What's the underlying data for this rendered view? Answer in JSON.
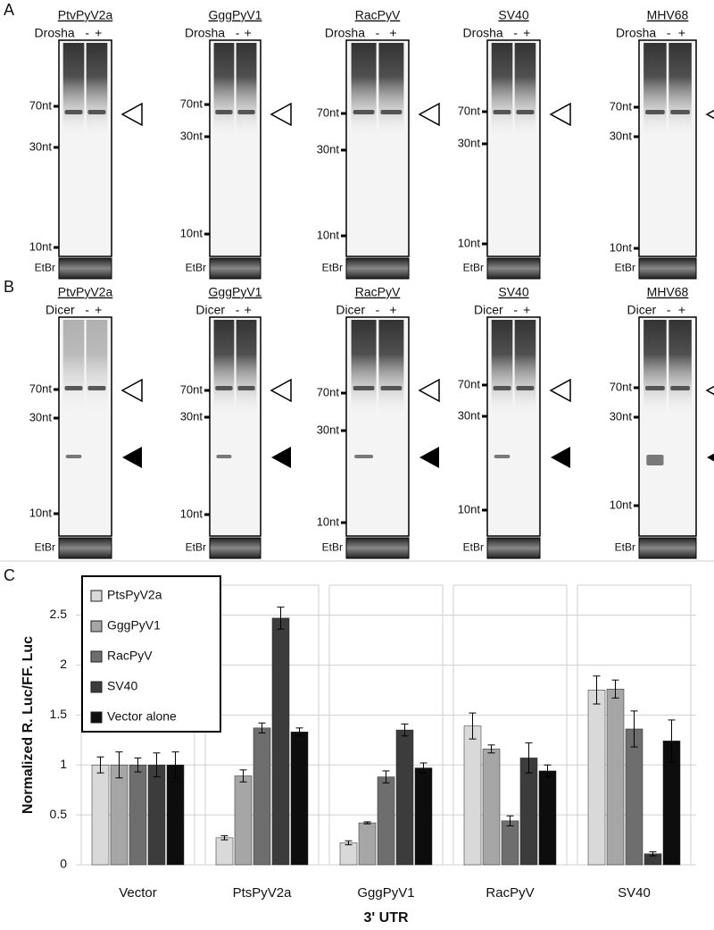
{
  "panels": [
    {
      "label": "A",
      "enzyme": "Drosha",
      "minus": "-",
      "plus": "+",
      "loading": "EtBr",
      "blots": [
        {
          "name": "PtvPyV2a",
          "markers": [
            "70nt",
            "30nt",
            "10nt"
          ]
        },
        {
          "name": "GggPyV1",
          "markers": [
            "70nt",
            "30nt",
            "10nt"
          ]
        },
        {
          "name": "RacPyV",
          "markers": [
            "70nt",
            "30nt",
            "10nt"
          ]
        },
        {
          "name": "SV40",
          "markers": [
            "70nt",
            "30nt",
            "10nt"
          ]
        },
        {
          "name": "MHV68",
          "markers": [
            "70nt",
            "30nt",
            "10nt"
          ]
        }
      ]
    },
    {
      "label": "B",
      "enzyme": "Dicer",
      "minus": "-",
      "plus": "+",
      "loading": "EtBr",
      "blots": [
        {
          "name": "PtvPyV2a",
          "markers": [
            "70nt",
            "30nt",
            "10nt"
          ]
        },
        {
          "name": "GggPyV1",
          "markers": [
            "70nt",
            "30nt",
            "10nt"
          ]
        },
        {
          "name": "RacPyV",
          "markers": [
            "70nt",
            "30nt",
            "10nt"
          ]
        },
        {
          "name": "SV40",
          "markers": [
            "70nt",
            "30nt",
            "10nt"
          ]
        },
        {
          "name": "MHV68",
          "markers": [
            "70nt",
            "30nt",
            "10nt"
          ]
        }
      ]
    }
  ],
  "chart_data": {
    "type": "bar",
    "panel_label": "C",
    "ylabel": "Normalized R. Luc/FF. Luc",
    "xlabel": "3' UTR",
    "categories": [
      "Vector",
      "PtsPyV2a",
      "GggPyV1",
      "RacPyV",
      "SV40"
    ],
    "series": [
      {
        "name": "PtsPyV2a",
        "color": "#d9d9d9",
        "values": [
          1,
          0.27,
          0.22,
          1.39,
          1.75
        ],
        "errors": [
          0.08,
          0.02,
          0.02,
          0.13,
          0.14
        ]
      },
      {
        "name": "GggPyV1",
        "color": "#a6a6a6",
        "values": [
          1,
          0.89,
          0.42,
          1.16,
          1.76
        ],
        "errors": [
          0.13,
          0.06,
          0.01,
          0.04,
          0.09
        ]
      },
      {
        "name": "RacPyV",
        "color": "#6e6e6e",
        "values": [
          1,
          1.37,
          0.88,
          0.44,
          1.36
        ],
        "errors": [
          0.07,
          0.05,
          0.06,
          0.05,
          0.18
        ]
      },
      {
        "name": "SV40",
        "color": "#3c3c3c",
        "values": [
          1,
          2.47,
          1.35,
          1.07,
          0.11
        ],
        "errors": [
          0.12,
          0.11,
          0.06,
          0.15,
          0.02
        ]
      },
      {
        "name": "Vector alone",
        "color": "#0d0d0d",
        "values": [
          1,
          1.33,
          0.97,
          0.94,
          1.24
        ],
        "errors": [
          0.13,
          0.04,
          0.05,
          0.06,
          0.21
        ]
      }
    ],
    "ylim": [
      0,
      2.8
    ],
    "yticks": [
      0,
      0.5,
      1,
      1.5,
      2,
      2.5
    ],
    "grid": true,
    "legend": "top-left"
  }
}
